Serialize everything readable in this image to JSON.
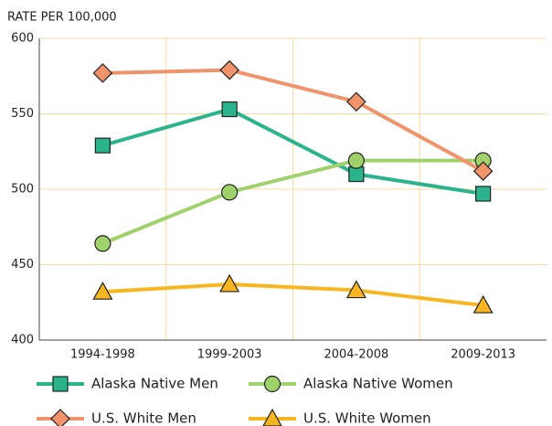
{
  "chart_data": {
    "type": "line",
    "y_axis_label": "RATE PER 100,000",
    "categories": [
      "1994-1998",
      "1999-2003",
      "2004-2008",
      "2009-2013"
    ],
    "series": [
      {
        "name": "Alaska Native Men",
        "color": "#2bb38c",
        "marker": "square",
        "values": [
          529,
          553,
          510,
          497
        ]
      },
      {
        "name": "Alaska Native Women",
        "color": "#9fd26b",
        "marker": "circle",
        "values": [
          464,
          498,
          519,
          519
        ]
      },
      {
        "name": "U.S. White Men",
        "color": "#f0936a",
        "marker": "diamond",
        "values": [
          577,
          579,
          558,
          512
        ]
      },
      {
        "name": "U.S. White Women",
        "color": "#f7b51f",
        "marker": "triangle",
        "values": [
          432,
          437,
          433,
          423
        ]
      }
    ],
    "ylim": [
      400,
      600
    ],
    "yticks": [
      400,
      450,
      500,
      550,
      600
    ],
    "grid": true
  }
}
